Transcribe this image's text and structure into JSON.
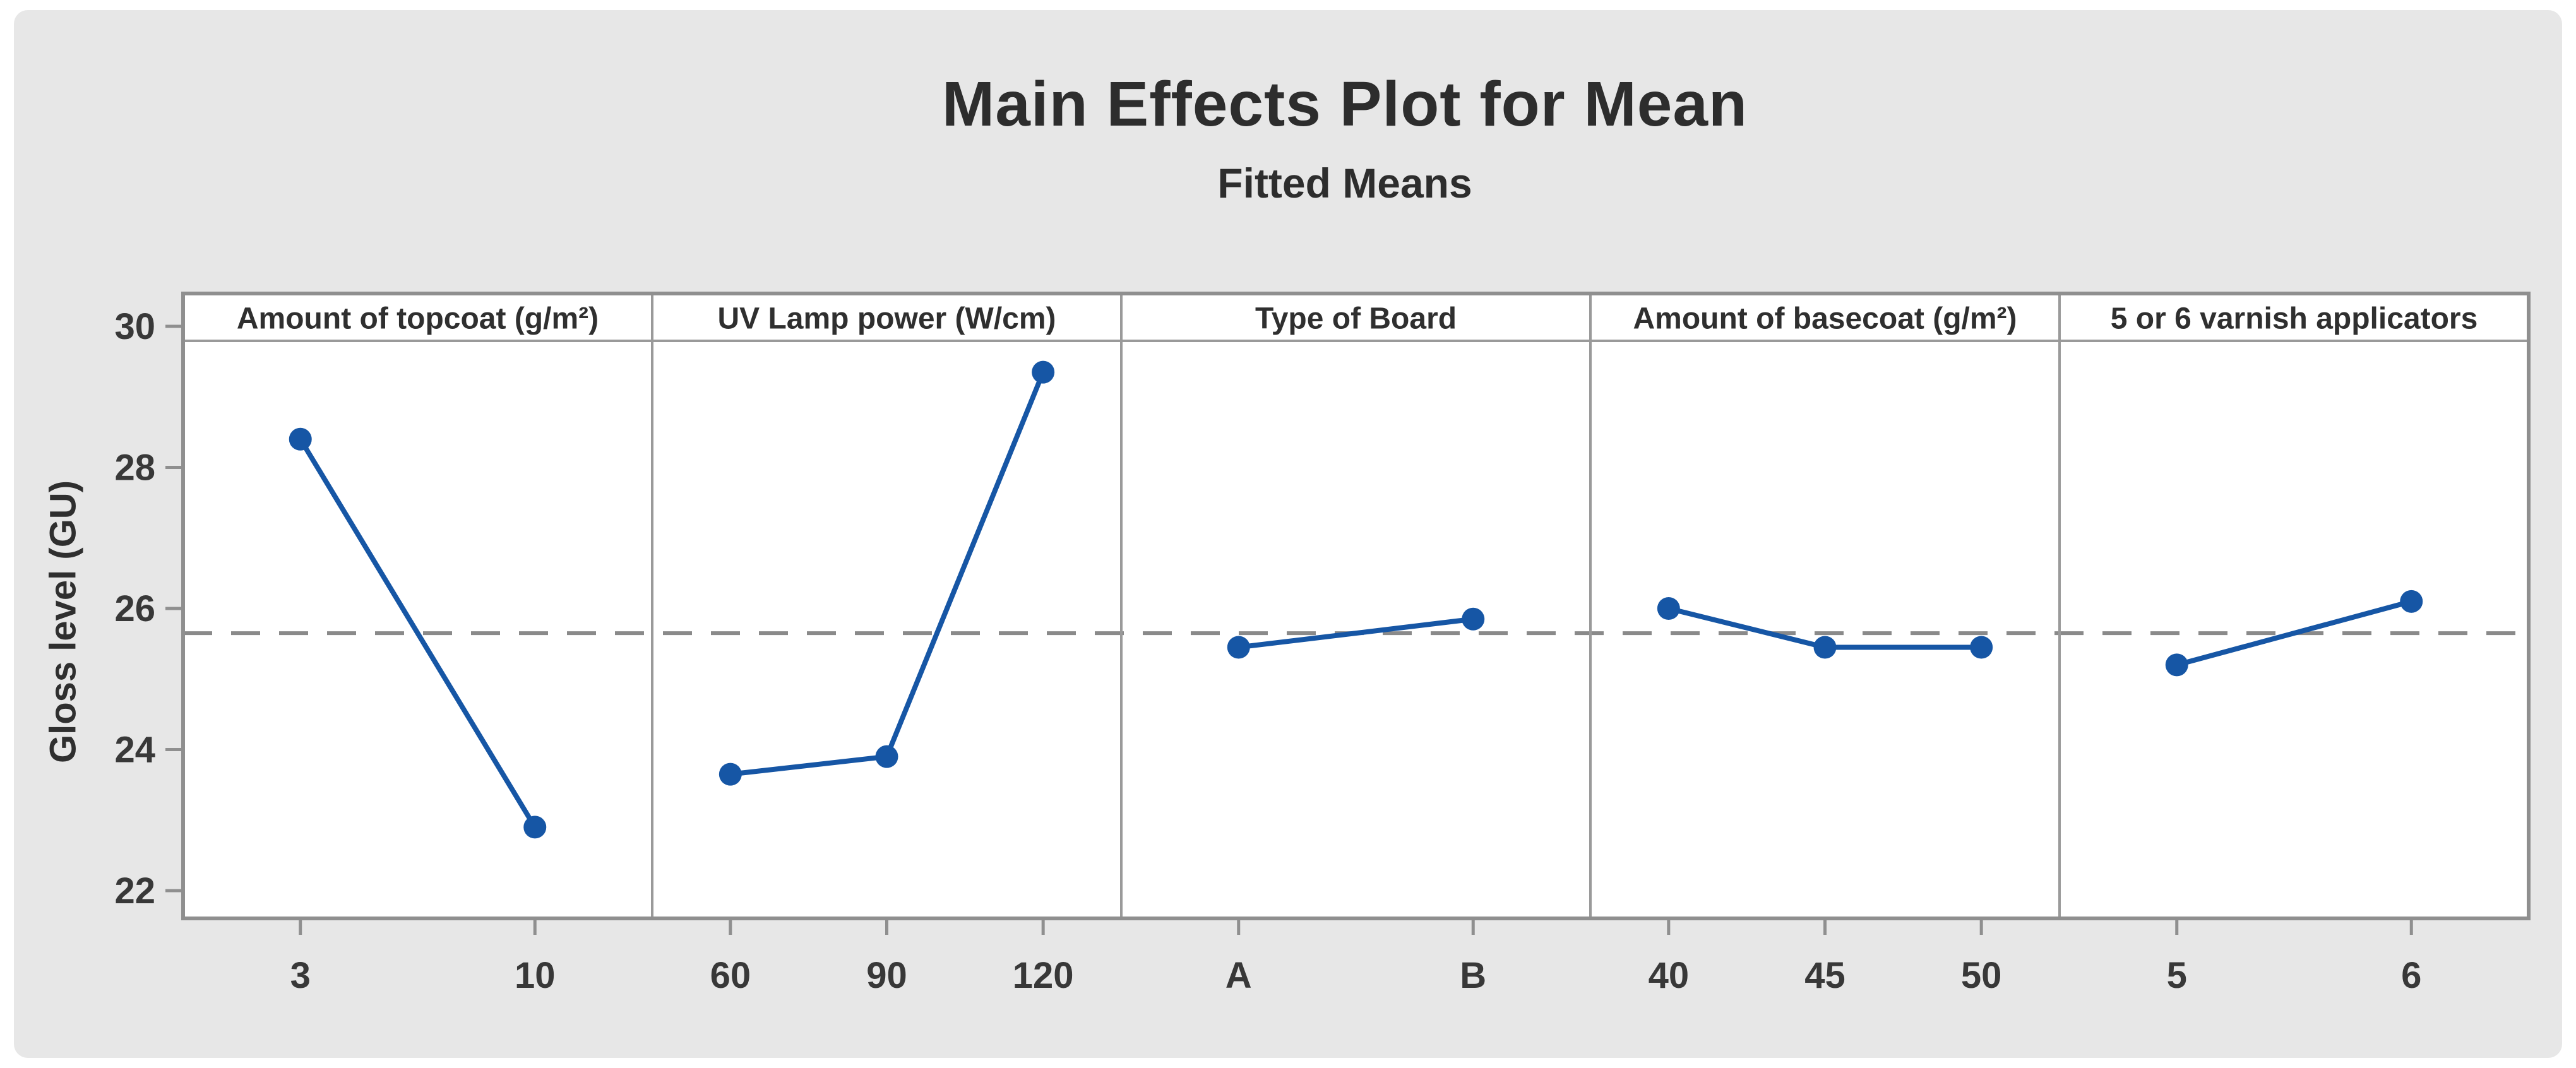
{
  "title": "Main Effects Plot for Mean",
  "subtitle": "Fitted Means",
  "chart_data": {
    "type": "line",
    "title": "Main Effects Plot for Mean",
    "subtitle": "Fitted Means",
    "ylabel": "Gloss level (GU)",
    "y_ticks": [
      "30",
      "28",
      "26",
      "24",
      "22"
    ],
    "ylim": [
      21.6,
      30.45
    ],
    "grid": "off",
    "legend": "none",
    "reference_line": {
      "value": 25.65,
      "style": "dashed"
    },
    "panels": [
      {
        "factor": "Amount of topcoat (g/m²)",
        "categories": [
          "3",
          "10"
        ],
        "values": [
          28.4,
          22.9
        ]
      },
      {
        "factor": "UV Lamp power (W/cm)",
        "categories": [
          "60",
          "90",
          "120"
        ],
        "values": [
          23.65,
          23.9,
          29.35
        ]
      },
      {
        "factor": "Type of Board",
        "categories": [
          "A",
          "B"
        ],
        "values": [
          25.45,
          25.85
        ]
      },
      {
        "factor": "Amount of basecoat (g/m²)",
        "categories": [
          "40",
          "45",
          "50"
        ],
        "values": [
          26.0,
          25.45,
          25.45
        ]
      },
      {
        "factor": "5 or 6 varnish applicators",
        "categories": [
          "5",
          "6"
        ],
        "values": [
          25.2,
          26.1
        ]
      }
    ],
    "colors": {
      "series": "#1656a5",
      "reference_line": "#8a8a8a",
      "frame": "#8f8f8f",
      "panel_divider": "#9a9a9a",
      "canvas_background": "#e7e7e7",
      "plot_background": "#ffffff",
      "tick_text": "#383838",
      "header_text": "#2f2f2f"
    }
  }
}
